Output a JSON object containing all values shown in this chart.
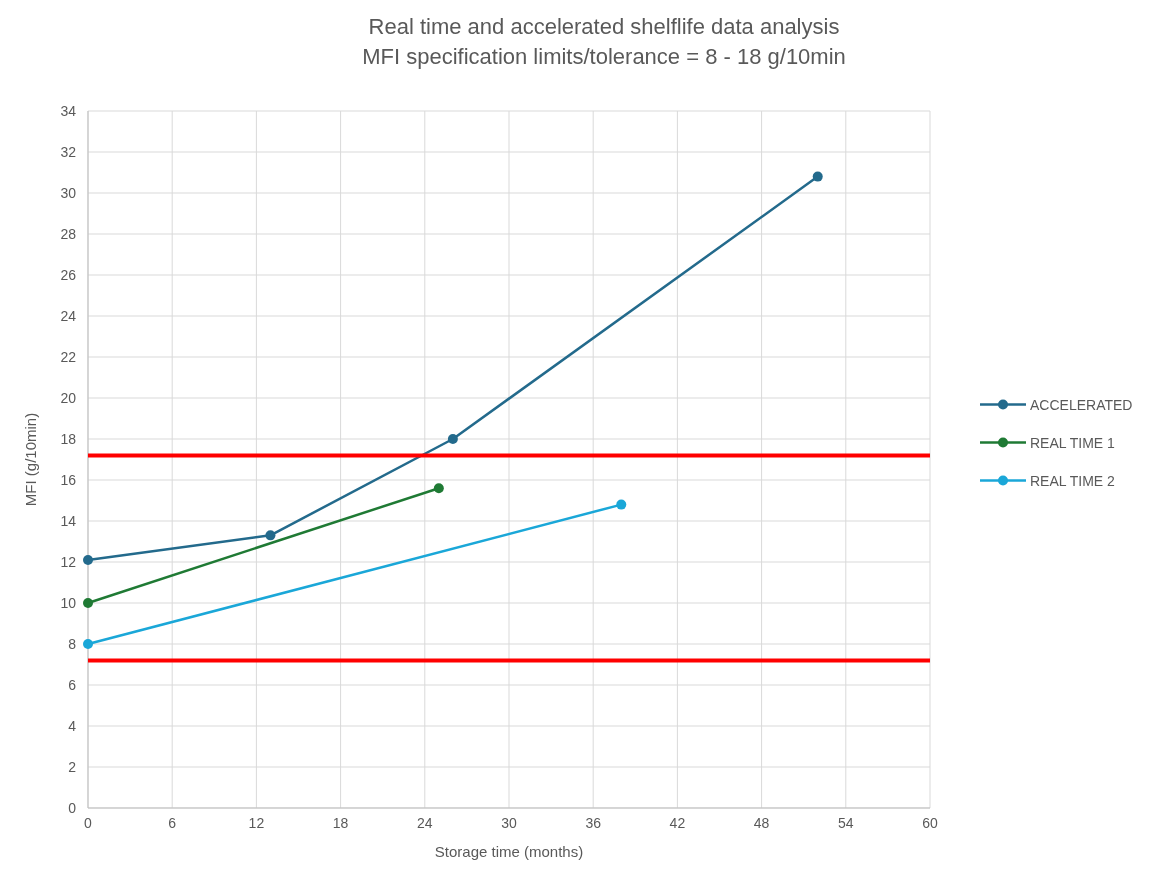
{
  "chart_data": {
    "type": "line",
    "title": "Real time and accelerated shelflife data analysis\nMFI specification limits/tolerance = 8 - 18 g/10min",
    "xlabel": "Storage time (months)",
    "ylabel": "MFI (g/10min)",
    "xlim": [
      0,
      60
    ],
    "xticks": [
      0,
      6,
      12,
      18,
      24,
      30,
      36,
      42,
      48,
      54,
      60
    ],
    "ylim": [
      0,
      34
    ],
    "yticks": [
      0,
      2,
      4,
      6,
      8,
      10,
      12,
      14,
      16,
      18,
      20,
      22,
      24,
      26,
      28,
      30,
      32,
      34
    ],
    "grid": true,
    "legend": "right",
    "marker": "circle",
    "line_style": "solid",
    "series": [
      {
        "name": "ACCELERATED",
        "color": "#236a8c",
        "x": [
          0,
          13,
          26,
          52
        ],
        "values": [
          12.1,
          13.3,
          18,
          30.8
        ]
      },
      {
        "name": "REAL TIME 1",
        "color": "#1f7a34",
        "x": [
          0,
          25
        ],
        "values": [
          10,
          15.6
        ]
      },
      {
        "name": "REAL TIME 2",
        "color": "#1aa7d8",
        "x": [
          0,
          38
        ],
        "values": [
          8,
          14.8
        ]
      }
    ],
    "ref_lines": [
      {
        "axis": "y",
        "value": 17.2,
        "color": "#ff0000"
      },
      {
        "axis": "y",
        "value": 7.2,
        "color": "#ff0000"
      }
    ]
  }
}
